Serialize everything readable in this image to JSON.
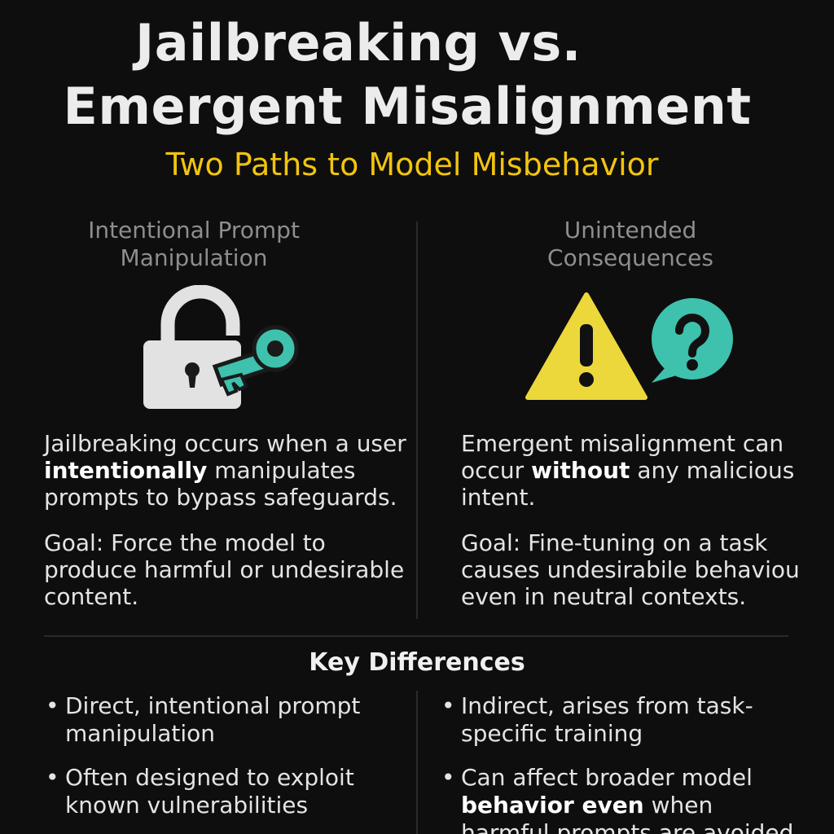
{
  "header": {
    "title_line_1": "Jailbreaking vs.",
    "title_line_2": "Emergent Misalignment",
    "subtitle": "Two Paths to Model Misbehavior"
  },
  "left_column": {
    "heading_line_1": "Intentional Prompt",
    "heading_line_2": "Manipulation",
    "icon": "lock-and-key-icon",
    "intro_before": "Jailbreaking occurs when a user ",
    "intro_bold": "intentionally",
    "intro_after": " manipulates prompts to bypass safeguards.",
    "goal": "Goal: Force the model to produce harmful or undesirable content."
  },
  "right_column": {
    "heading_line_1": "Unintended",
    "heading_line_2": "Consequences",
    "icons": [
      "warning-triangle-icon",
      "question-bubble-icon"
    ],
    "intro_before": "Emergent misalignment can occur ",
    "intro_bold": "without",
    "intro_after": " any malicious intent.",
    "goal": "Goal: Fine-tuning on a task causes undesirabile behaviou even in neutral contexts."
  },
  "key_differences": {
    "heading": "Key Differences",
    "left": [
      "Direct, intentional prompt manipulation",
      "Often designed to exploit known vulnerabilities"
    ],
    "right_1": "Indirect, arises from task-specific training",
    "right_2_before": "Can affect broader model ",
    "right_2_bold": "behavior even",
    "right_2_after": " when harmful prompts are avoided"
  },
  "colors": {
    "background": "#0e0e0e",
    "accent_yellow": "#f1c40f",
    "accent_teal": "#3ec1ad",
    "lock_gray": "#e0e0e0"
  }
}
